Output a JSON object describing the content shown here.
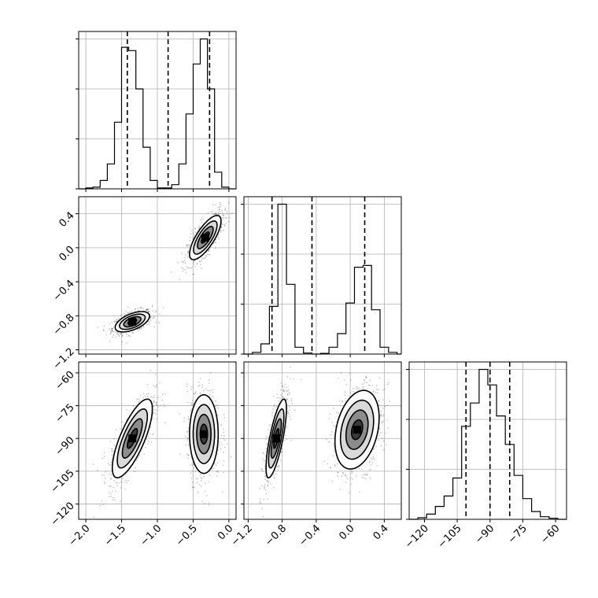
{
  "chart_data": {
    "type": "corner",
    "parameters": [
      {
        "range": [
          -2.1,
          0.1
        ],
        "ticks": [
          -2.0,
          -1.5,
          -1.0,
          -0.5,
          0.0
        ],
        "tick_labels": [
          "−2.0",
          "−1.5",
          "−1.0",
          "−0.5",
          "0.0"
        ],
        "quantiles": [
          -1.42,
          -0.85,
          -0.27
        ]
      },
      {
        "range": [
          -1.25,
          0.6
        ],
        "ticks": [
          -1.2,
          -0.8,
          -0.4,
          0.0,
          0.4
        ],
        "tick_labels": [
          "−1.2",
          "−0.8",
          "−0.4",
          "0.0",
          "0.4"
        ],
        "quantiles": [
          -0.92,
          -0.45,
          0.17
        ]
      },
      {
        "range": [
          -127,
          -55
        ],
        "ticks": [
          -120,
          -105,
          -90,
          -75,
          -60
        ],
        "tick_labels": [
          "−120",
          "−105",
          "−90",
          "−75",
          "−60"
        ],
        "quantiles": [
          -101,
          -90,
          -81
        ]
      }
    ],
    "histograms": [
      {
        "edges": [
          -2.1,
          -2.0,
          -1.9,
          -1.8,
          -1.7,
          -1.6,
          -1.5,
          -1.4,
          -1.3,
          -1.2,
          -1.1,
          -1.0,
          -0.9,
          -0.8,
          -0.7,
          -0.6,
          -0.5,
          -0.4,
          -0.3,
          -0.2,
          -0.1,
          0.0,
          0.1
        ],
        "counts": [
          0,
          1,
          2,
          10,
          30,
          80,
          170,
          166,
          120,
          50,
          10,
          1,
          1,
          5,
          30,
          90,
          150,
          180,
          120,
          20,
          2,
          0
        ]
      },
      {
        "edges": [
          -1.25,
          -1.15,
          -1.05,
          -0.95,
          -0.85,
          -0.75,
          -0.65,
          -0.55,
          -0.45,
          -0.35,
          -0.25,
          -0.15,
          -0.05,
          0.05,
          0.15,
          0.25,
          0.35,
          0.45,
          0.55,
          0.6
        ],
        "counts": [
          0,
          5,
          30,
          140,
          440,
          205,
          20,
          3,
          0,
          2,
          20,
          60,
          150,
          255,
          260,
          130,
          20,
          5,
          0
        ]
      },
      {
        "edges": [
          -127,
          -123,
          -119,
          -115,
          -111,
          -107,
          -103,
          -99,
          -95,
          -91,
          -87,
          -83,
          -79,
          -75,
          -71,
          -67,
          -63,
          -59,
          -55
        ],
        "counts": [
          0,
          3,
          10,
          25,
          45,
          80,
          180,
          225,
          290,
          260,
          200,
          145,
          85,
          40,
          15,
          5,
          2,
          0
        ]
      }
    ],
    "modes_2d": [
      {
        "panel": "param2-vs-param1",
        "modes": [
          {
            "center": [
              -1.35,
              -0.87
            ],
            "sigma": [
              0.12,
              0.06
            ],
            "corr": 0.55,
            "weight": 0.5
          },
          {
            "center": [
              -0.33,
              0.12
            ],
            "sigma": [
              0.11,
              0.13
            ],
            "corr": 0.75,
            "weight": 0.5
          }
        ]
      },
      {
        "panel": "param3-vs-param1",
        "modes": [
          {
            "center": [
              -1.35,
              -90
            ],
            "sigma": [
              0.14,
              9
            ],
            "corr": 0.75,
            "weight": 0.5
          },
          {
            "center": [
              -0.35,
              -88
            ],
            "sigma": [
              0.1,
              9
            ],
            "corr": 0.0,
            "weight": 0.5
          }
        ]
      },
      {
        "panel": "param3-vs-param2",
        "modes": [
          {
            "center": [
              -0.87,
              -90
            ],
            "sigma": [
              0.06,
              9
            ],
            "corr": 0.75,
            "weight": 0.5
          },
          {
            "center": [
              0.08,
              -86
            ],
            "sigma": [
              0.13,
              9
            ],
            "corr": 0.3,
            "weight": 0.5
          }
        ]
      }
    ],
    "grid": true,
    "contour_levels_sigma": [
      0.5,
      1.0,
      1.5,
      2.0
    ]
  }
}
